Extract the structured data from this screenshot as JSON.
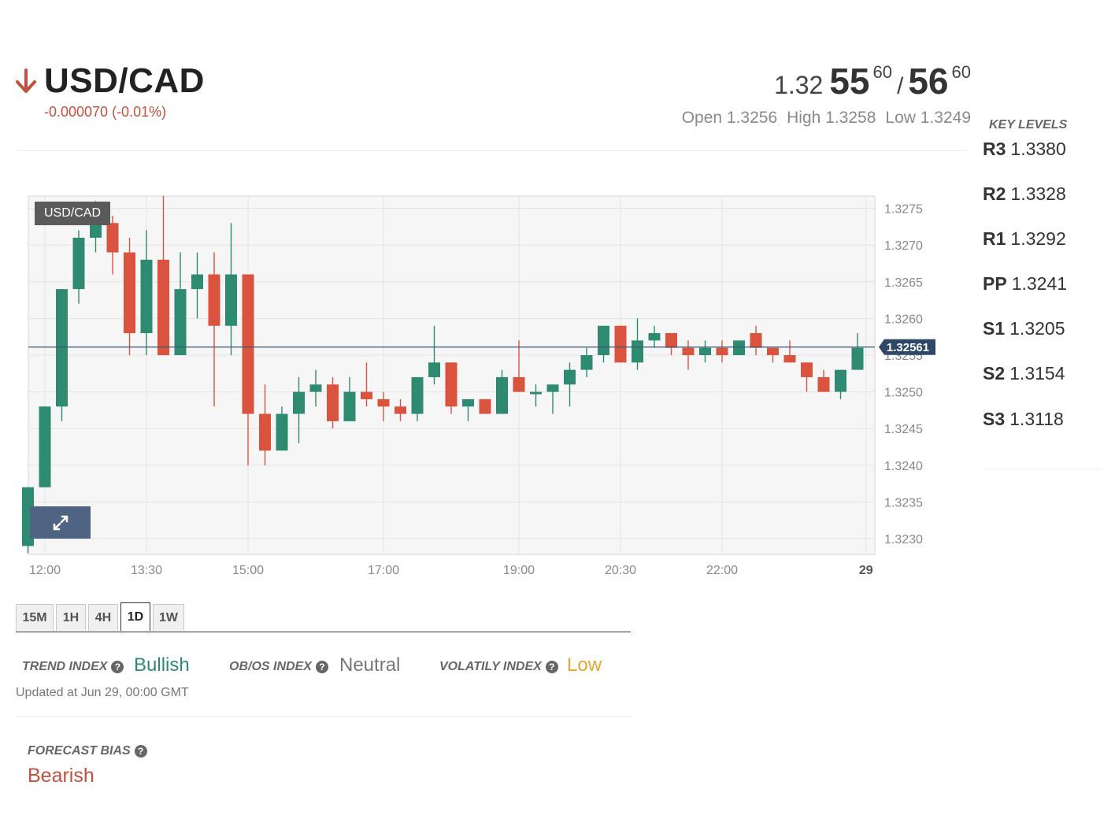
{
  "header": {
    "pair": "USD/CAD",
    "change": "-0.000070 (-0.01%)",
    "direction_icon": "arrow-down-icon",
    "price": {
      "bid_prefix": "1.32",
      "bid_big": "55",
      "bid_pip": "60",
      "separator": "/",
      "ask_big": "56",
      "ask_pip": "60"
    },
    "open": "Open 1.3256",
    "high": "High 1.3258",
    "low": "Low 1.3249"
  },
  "key_levels": {
    "title": "KEY LEVELS",
    "items": [
      {
        "label": "R3",
        "value": "1.3380"
      },
      {
        "label": "R2",
        "value": "1.3328"
      },
      {
        "label": "R1",
        "value": "1.3292"
      },
      {
        "label": "PP",
        "value": "1.3241"
      },
      {
        "label": "S1",
        "value": "1.3205"
      },
      {
        "label": "S2",
        "value": "1.3154"
      },
      {
        "label": "S3",
        "value": "1.3118"
      }
    ]
  },
  "chart": {
    "tag": "USD/CAD",
    "expand_icon": "expand-icon",
    "current_label": "1.32561",
    "current_value": 1.32561,
    "colors": {
      "up": "#2e8b72",
      "down": "#d9533f",
      "price_line": "#3d5573",
      "price_tag_bg": "#2f4867"
    }
  },
  "chart_data": {
    "type": "candlestick",
    "title": "USD/CAD",
    "ylim": [
      1.3228,
      1.3277
    ],
    "y_ticks": [
      "1.3230",
      "1.3235",
      "1.3240",
      "1.3245",
      "1.3250",
      "1.3255",
      "1.3260",
      "1.3265",
      "1.3270",
      "1.3275"
    ],
    "x_ticks": [
      "12:00",
      "13:30",
      "15:00",
      "17:00",
      "19:00",
      "20:30",
      "22:00",
      "29"
    ],
    "x_tick_index": [
      1,
      7,
      13,
      21,
      29,
      35,
      41,
      49.5
    ],
    "candles": [
      {
        "o": 1.3229,
        "h": 1.3237,
        "l": 1.3228,
        "c": 1.3237
      },
      {
        "o": 1.3237,
        "h": 1.3248,
        "l": 1.3237,
        "c": 1.3248
      },
      {
        "o": 1.3248,
        "h": 1.3264,
        "l": 1.3246,
        "c": 1.3264
      },
      {
        "o": 1.3264,
        "h": 1.3272,
        "l": 1.3262,
        "c": 1.3271
      },
      {
        "o": 1.3271,
        "h": 1.3276,
        "l": 1.3269,
        "c": 1.3273
      },
      {
        "o": 1.3273,
        "h": 1.3274,
        "l": 1.3266,
        "c": 1.3269
      },
      {
        "o": 1.3269,
        "h": 1.3271,
        "l": 1.3255,
        "c": 1.3258
      },
      {
        "o": 1.3258,
        "h": 1.3272,
        "l": 1.3255,
        "c": 1.3268
      },
      {
        "o": 1.3268,
        "h": 1.3277,
        "l": 1.3255,
        "c": 1.3255
      },
      {
        "o": 1.3255,
        "h": 1.3269,
        "l": 1.3255,
        "c": 1.3264
      },
      {
        "o": 1.3264,
        "h": 1.3269,
        "l": 1.326,
        "c": 1.3266
      },
      {
        "o": 1.3266,
        "h": 1.3269,
        "l": 1.3248,
        "c": 1.3259
      },
      {
        "o": 1.3259,
        "h": 1.3273,
        "l": 1.3255,
        "c": 1.3266
      },
      {
        "o": 1.3266,
        "h": 1.3266,
        "l": 1.324,
        "c": 1.3247
      },
      {
        "o": 1.3247,
        "h": 1.3251,
        "l": 1.324,
        "c": 1.3242
      },
      {
        "o": 1.3242,
        "h": 1.3248,
        "l": 1.3242,
        "c": 1.3247
      },
      {
        "o": 1.3247,
        "h": 1.3252,
        "l": 1.3243,
        "c": 1.325
      },
      {
        "o": 1.325,
        "h": 1.3253,
        "l": 1.3248,
        "c": 1.3251
      },
      {
        "o": 1.3251,
        "h": 1.3252,
        "l": 1.3245,
        "c": 1.3246
      },
      {
        "o": 1.3246,
        "h": 1.3252,
        "l": 1.3246,
        "c": 1.325
      },
      {
        "o": 1.325,
        "h": 1.3254,
        "l": 1.3248,
        "c": 1.3249
      },
      {
        "o": 1.3249,
        "h": 1.325,
        "l": 1.3246,
        "c": 1.3248
      },
      {
        "o": 1.3248,
        "h": 1.3249,
        "l": 1.3246,
        "c": 1.3247
      },
      {
        "o": 1.3247,
        "h": 1.3252,
        "l": 1.3246,
        "c": 1.3252
      },
      {
        "o": 1.3252,
        "h": 1.3259,
        "l": 1.3251,
        "c": 1.3254
      },
      {
        "o": 1.3254,
        "h": 1.3254,
        "l": 1.3247,
        "c": 1.3248
      },
      {
        "o": 1.3248,
        "h": 1.3249,
        "l": 1.3246,
        "c": 1.3249
      },
      {
        "o": 1.3249,
        "h": 1.3249,
        "l": 1.3247,
        "c": 1.3247
      },
      {
        "o": 1.3247,
        "h": 1.3253,
        "l": 1.3247,
        "c": 1.3252
      },
      {
        "o": 1.3252,
        "h": 1.3257,
        "l": 1.325,
        "c": 1.325
      },
      {
        "o": 1.325,
        "h": 1.3251,
        "l": 1.3248,
        "c": 1.325
      },
      {
        "o": 1.325,
        "h": 1.3251,
        "l": 1.3247,
        "c": 1.3251
      },
      {
        "o": 1.3251,
        "h": 1.3254,
        "l": 1.3248,
        "c": 1.3253
      },
      {
        "o": 1.3253,
        "h": 1.3256,
        "l": 1.3252,
        "c": 1.3255
      },
      {
        "o": 1.3255,
        "h": 1.3259,
        "l": 1.3254,
        "c": 1.3259
      },
      {
        "o": 1.3259,
        "h": 1.3259,
        "l": 1.3254,
        "c": 1.3254
      },
      {
        "o": 1.3254,
        "h": 1.326,
        "l": 1.3253,
        "c": 1.3257
      },
      {
        "o": 1.3257,
        "h": 1.3259,
        "l": 1.3256,
        "c": 1.3258
      },
      {
        "o": 1.3258,
        "h": 1.3258,
        "l": 1.3255,
        "c": 1.3256
      },
      {
        "o": 1.3256,
        "h": 1.3257,
        "l": 1.3253,
        "c": 1.3255
      },
      {
        "o": 1.3255,
        "h": 1.3257,
        "l": 1.3254,
        "c": 1.3256
      },
      {
        "o": 1.3256,
        "h": 1.3257,
        "l": 1.3254,
        "c": 1.3255
      },
      {
        "o": 1.3255,
        "h": 1.3257,
        "l": 1.3255,
        "c": 1.3257
      },
      {
        "o": 1.3258,
        "h": 1.3259,
        "l": 1.3255,
        "c": 1.3256
      },
      {
        "o": 1.3256,
        "h": 1.3256,
        "l": 1.3254,
        "c": 1.3255
      },
      {
        "o": 1.3255,
        "h": 1.3257,
        "l": 1.3254,
        "c": 1.3254
      },
      {
        "o": 1.3254,
        "h": 1.3254,
        "l": 1.325,
        "c": 1.3252
      },
      {
        "o": 1.3252,
        "h": 1.3253,
        "l": 1.325,
        "c": 1.325
      },
      {
        "o": 1.325,
        "h": 1.3253,
        "l": 1.3249,
        "c": 1.3253
      },
      {
        "o": 1.3253,
        "h": 1.3258,
        "l": 1.3253,
        "c": 1.3256
      }
    ]
  },
  "timeframes": {
    "items": [
      "15M",
      "1H",
      "4H",
      "1D",
      "1W"
    ],
    "active": "1D"
  },
  "indices": {
    "trend": {
      "label": "TREND INDEX",
      "value": "Bullish",
      "color": "#2e8b72"
    },
    "obos": {
      "label": "OB/OS INDEX",
      "value": "Neutral",
      "color": "#777777"
    },
    "volatility": {
      "label": "VOLATILY INDEX",
      "value": "Low",
      "color": "#e0a82e"
    },
    "updated": "Updated at Jun 29, 00:00 GMT",
    "help_icon": "question-circle-icon"
  },
  "forecast": {
    "label": "FORECAST BIAS",
    "value": "Bearish"
  }
}
